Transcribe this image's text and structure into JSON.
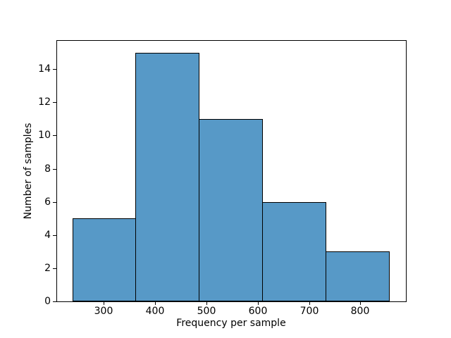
{
  "chart_data": {
    "type": "bar",
    "subtype": "histogram",
    "title": "",
    "xlabel": "Frequency per sample",
    "ylabel": "Number of samples",
    "bin_edges": [
      238.5,
      362.3,
      486.2,
      610.0,
      733.8,
      857.7
    ],
    "counts": [
      5,
      15,
      11,
      6,
      3
    ],
    "xticks": [
      300,
      400,
      500,
      600,
      700,
      800
    ],
    "yticks": [
      0,
      2,
      4,
      6,
      8,
      10,
      12,
      14
    ],
    "xlim": [
      207.5,
      888.7
    ],
    "ylim": [
      0,
      15.75
    ],
    "grid": false,
    "legend": false,
    "bar_fill_color": "#5799c7",
    "bar_edge_color": "#000000",
    "axis_color": "#000000",
    "text_color": "#000000",
    "background_color": "#ffffff"
  }
}
